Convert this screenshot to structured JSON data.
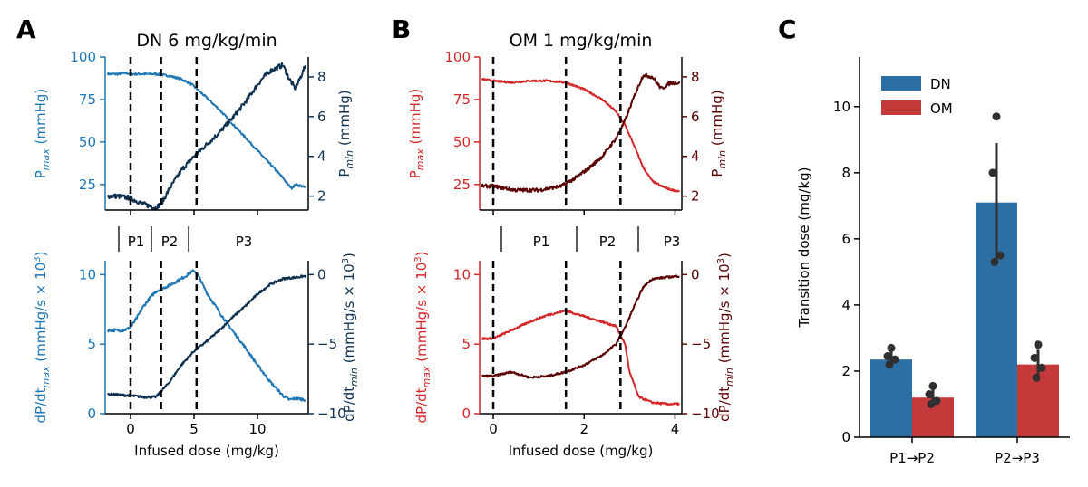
{
  "colors": {
    "dn_light": "#1f77b4",
    "dn_dark": "#0d3050",
    "om_light": "#d62728",
    "om_dark": "#5a0000",
    "bar_dn": "#2e6fa3",
    "bar_om": "#c43a3a",
    "dots": "#303030",
    "axis": "#000000"
  },
  "panel_labels": [
    "A",
    "B",
    "C"
  ],
  "chart_data": [
    {
      "id": "A-top",
      "type": "line",
      "title": "DN 6 mg/kg/min",
      "xlim": [
        -2,
        14
      ],
      "ylim_left": [
        10,
        100
      ],
      "ylim_right": [
        1.3,
        9
      ],
      "yticks_left": [
        "25",
        "50",
        "75",
        "100"
      ],
      "yticks_right": [
        "2",
        "4",
        "6",
        "8"
      ],
      "ylabel_left": "P",
      "ylabel_left_sub": "max",
      "ylabel_left_unit": " (mmHg)",
      "ylabel_right": "P",
      "ylabel_right_sub": "min",
      "ylabel_right_unit": " (mmHg)",
      "vlines": [
        0,
        2.4,
        5.2
      ],
      "series": [
        {
          "name": "Pmax",
          "axis": "left",
          "color": "dn_light",
          "noise": 0.6,
          "x": [
            -1.8,
            -1,
            -0.3,
            0,
            1,
            2,
            3,
            4,
            4.8,
            5.4,
            6,
            7,
            8,
            9,
            10,
            11,
            11.5,
            12,
            12.4,
            12.7,
            13,
            13.5,
            13.8
          ],
          "y": [
            90,
            90,
            90.5,
            90,
            90,
            90,
            89,
            87,
            84,
            80,
            76,
            69,
            61,
            53,
            45,
            37,
            33,
            29,
            25,
            23,
            25,
            24,
            23
          ]
        },
        {
          "name": "Pmin",
          "axis": "right",
          "color": "dn_dark",
          "noise": 0.12,
          "x": [
            -1.8,
            -1,
            0,
            1,
            2,
            2.5,
            3,
            4,
            5,
            6,
            7,
            8,
            9,
            10,
            10.5,
            11,
            12,
            12.5,
            13,
            13.8
          ],
          "y": [
            2.0,
            2.0,
            1.9,
            1.6,
            1.4,
            1.7,
            2.3,
            3.3,
            4.0,
            4.6,
            5.2,
            5.9,
            6.7,
            7.6,
            8.0,
            8.3,
            8.6,
            7.9,
            7.4,
            8.6
          ]
        }
      ],
      "annotations": [
        "P1",
        "P2",
        "P3"
      ]
    },
    {
      "id": "A-bottom",
      "type": "line",
      "xlim": [
        -2,
        14
      ],
      "ylim_left": [
        0,
        11
      ],
      "ylim_right": [
        -10,
        1
      ],
      "yticks_left": [
        "0",
        "5",
        "10"
      ],
      "yticks_right": [
        "−10",
        "−5",
        "0"
      ],
      "xticks": [
        "0",
        "5",
        "10"
      ],
      "xlabel": "Infused dose (mg/kg)",
      "ylabel_left": "dP/dt",
      "ylabel_left_sub": "max",
      "ylabel_left_unit": " (mmHg/s × 10",
      "ylabel_left_sup": "3",
      "ylabel_right": "dP/dt",
      "ylabel_right_sub": "min",
      "ylabel_right_unit": " (mmHg/s × 10",
      "ylabel_right_sup": "3",
      "vlines": [
        0,
        2.4,
        5.2
      ],
      "series": [
        {
          "name": "dPdtmax",
          "axis": "left",
          "color": "dn_light",
          "noise": 0.1,
          "x": [
            -1.8,
            -0.5,
            0,
            0.5,
            1,
            1.5,
            2,
            3,
            4,
            5,
            5.3,
            6,
            7,
            8,
            9,
            10,
            11,
            12,
            12.5,
            13,
            13.8
          ],
          "y": [
            6.0,
            6.0,
            6.2,
            6.9,
            7.7,
            8.3,
            8.8,
            9.2,
            9.7,
            10.3,
            10.0,
            8.7,
            7.3,
            6.0,
            4.8,
            3.5,
            2.3,
            1.3,
            1.0,
            1.1,
            1.0
          ]
        },
        {
          "name": "dPdtmin",
          "axis": "right",
          "color": "dn_dark",
          "noise": 0.08,
          "x": [
            -1.8,
            0,
            1,
            2,
            3,
            4,
            5,
            6,
            7,
            8,
            9,
            10,
            11,
            12,
            13,
            13.8
          ],
          "y": [
            -8.6,
            -8.7,
            -8.8,
            -8.8,
            -7.8,
            -6.5,
            -5.5,
            -4.8,
            -4.0,
            -3.1,
            -2.3,
            -1.4,
            -0.7,
            -0.3,
            -0.2,
            -0.1
          ]
        }
      ]
    },
    {
      "id": "B-top",
      "type": "line",
      "title": "OM 1 mg/kg/min",
      "xlim": [
        -0.3,
        4.15
      ],
      "ylim_left": [
        10,
        100
      ],
      "ylim_right": [
        1.3,
        9
      ],
      "yticks_left": [
        "25",
        "50",
        "75",
        "100"
      ],
      "yticks_right": [
        "2",
        "4",
        "6",
        "8"
      ],
      "ylabel_left": "P",
      "ylabel_left_sub": "max",
      "ylabel_left_unit": " (mmHg)",
      "ylabel_right": "P",
      "ylabel_right_sub": "min",
      "ylabel_right_unit": " (mmHg)",
      "vlines": [
        0,
        1.6,
        2.8
      ],
      "series": [
        {
          "name": "Pmax",
          "axis": "left",
          "color": "om_light",
          "noise": 0.5,
          "x": [
            -0.25,
            0,
            0.4,
            0.8,
            1.2,
            1.6,
            2.0,
            2.4,
            2.7,
            2.9,
            3.1,
            3.3,
            3.5,
            3.7,
            3.9,
            4.1
          ],
          "y": [
            87,
            86,
            85,
            86,
            86,
            85,
            81,
            75,
            68,
            60,
            48,
            35,
            27,
            24,
            22,
            21
          ]
        },
        {
          "name": "Pmin",
          "axis": "right",
          "color": "om_dark",
          "noise": 0.09,
          "x": [
            -0.25,
            0,
            0.5,
            1.0,
            1.5,
            1.8,
            2.1,
            2.4,
            2.7,
            2.9,
            3.1,
            3.3,
            3.5,
            3.7,
            3.9,
            4.1
          ],
          "y": [
            2.5,
            2.5,
            2.3,
            2.3,
            2.5,
            2.9,
            3.4,
            4.0,
            4.9,
            5.8,
            7.0,
            8.1,
            8.0,
            7.4,
            7.7,
            7.7
          ]
        }
      ]
    },
    {
      "id": "B-bottom",
      "type": "line",
      "xlim": [
        -0.3,
        4.15
      ],
      "ylim_left": [
        0,
        11
      ],
      "ylim_right": [
        -10,
        1
      ],
      "yticks_left": [
        "0",
        "5",
        "10"
      ],
      "yticks_right": [
        "−10",
        "−5",
        "0"
      ],
      "xticks": [
        "0",
        "2",
        "4"
      ],
      "xlabel": "Infused dose (mg/kg)",
      "ylabel_left": "dP/dt",
      "ylabel_left_sub": "max",
      "ylabel_left_unit": " (mmHg/s × 10",
      "ylabel_left_sup": "3",
      "ylabel_right": "dP/dt",
      "ylabel_right_sub": "min",
      "ylabel_right_unit": " (mmHg/s × 10",
      "ylabel_right_sup": "3",
      "vlines": [
        0,
        1.6,
        2.8
      ],
      "series": [
        {
          "name": "dPdtmax",
          "axis": "left",
          "color": "om_light",
          "noise": 0.07,
          "x": [
            -0.25,
            0,
            0.4,
            0.8,
            1.2,
            1.6,
            2.0,
            2.4,
            2.7,
            2.9,
            3.0,
            3.2,
            3.5,
            3.8,
            4.1
          ],
          "y": [
            5.4,
            5.4,
            6.0,
            6.6,
            7.1,
            7.4,
            7.0,
            6.6,
            6.3,
            5.0,
            3.0,
            1.2,
            0.8,
            0.7,
            0.7
          ]
        },
        {
          "name": "dPdtmin",
          "axis": "right",
          "color": "om_dark",
          "noise": 0.07,
          "x": [
            -0.25,
            0,
            0.4,
            0.8,
            1.2,
            1.6,
            2.0,
            2.4,
            2.7,
            2.9,
            3.1,
            3.3,
            3.5,
            3.8,
            4.1
          ],
          "y": [
            -7.3,
            -7.3,
            -7.0,
            -7.4,
            -7.3,
            -7.0,
            -6.5,
            -5.8,
            -5.0,
            -3.8,
            -2.3,
            -0.9,
            -0.3,
            -0.2,
            -0.1
          ]
        }
      ],
      "annotations": [
        "P1",
        "P2",
        "P3"
      ]
    },
    {
      "id": "C",
      "type": "bar",
      "categories": [
        "P1→P2",
        "P2→P3"
      ],
      "ylabel": "Transition dose (mg/kg)",
      "ylim": [
        0,
        11.5
      ],
      "yticks": [
        "0",
        "2",
        "4",
        "6",
        "8",
        "10"
      ],
      "series": [
        {
          "name": "DN",
          "color": "bar_dn",
          "values": [
            2.35,
            7.1
          ],
          "err_low": [
            2.3,
            5.4
          ],
          "err_high": [
            2.6,
            8.9
          ],
          "points": [
            [
              2.7,
              2.45,
              2.35,
              2.2
            ],
            [
              9.7,
              8.0,
              5.5,
              5.3
            ]
          ]
        },
        {
          "name": "OM",
          "color": "bar_om",
          "values": [
            1.2,
            2.2
          ],
          "err_low": [
            1.0,
            1.7
          ],
          "err_high": [
            1.45,
            2.65
          ],
          "points": [
            [
              1.55,
              1.3,
              1.1,
              1.0
            ],
            [
              2.8,
              2.4,
              2.1,
              1.8
            ]
          ]
        }
      ],
      "legend": [
        "DN",
        "OM"
      ]
    }
  ]
}
